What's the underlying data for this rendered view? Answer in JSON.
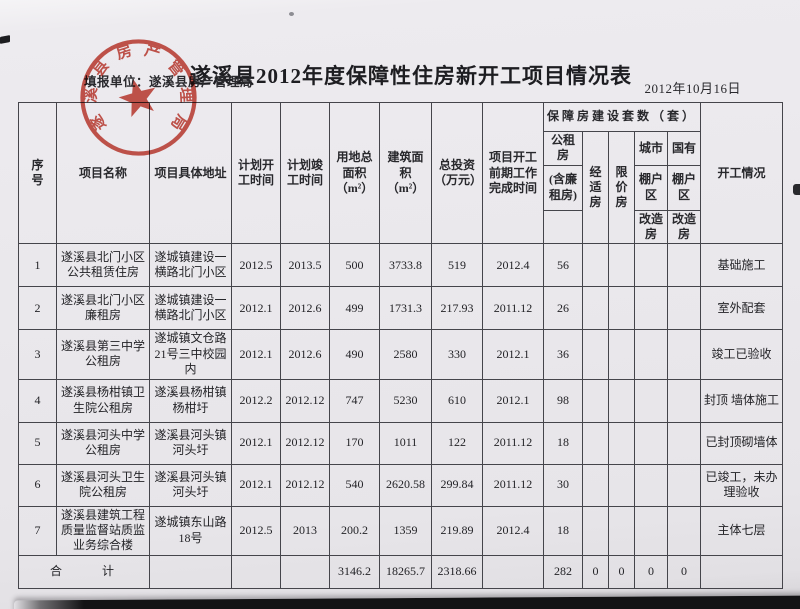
{
  "page": {
    "title": "遂溪县2012年度保障性住房新开工项目情况表",
    "report_unit": "填报单位：遂溪县房产管理局",
    "date": "2012年10月16日"
  },
  "stamp": {
    "text": "遂溪县房产管理局",
    "color": "#c2382c"
  },
  "table": {
    "column_keys": [
      "seq",
      "project-name",
      "project-address",
      "plan-start",
      "plan-finish",
      "land-area",
      "floor-area",
      "investment",
      "prework-time",
      "public-rental",
      "affordable",
      "price-capped",
      "urban-shanty",
      "state-shanty",
      "status"
    ],
    "headers": {
      "seq": "序\n号",
      "project_name": "项目名称",
      "project_address": "项目具体地址",
      "plan_start": "计划开\n工时间",
      "plan_finish": "计划竣\n工时间",
      "land_area": "用地总\n面积\n（m²）",
      "floor_area": "建筑面\n积\n（m²）",
      "investment": "总投资\n（万元）",
      "prework_time": "项目开工\n前期工作\n完成时间",
      "group": "保障房建设套数（套）",
      "public_rental_top": "公租\n房",
      "public_rental_sub": "(含廉\n租房)",
      "affordable": "经\n适\n房",
      "price_capped": "限\n价\n房",
      "urban_top": "城市",
      "urban_mid": "棚户\n区",
      "urban_bot": "改造\n房",
      "state_top": "国有",
      "state_mid": "棚户\n区",
      "state_bot": "改造\n房",
      "status": "开工情况"
    },
    "rows": [
      [
        "1",
        "遂溪县北门小区\n公共租赁住房",
        "遂城镇建设一\n横路北门小区",
        "2012.5",
        "2013.5",
        "500",
        "3733.8",
        "519",
        "2012.4",
        "56",
        "",
        "",
        "",
        "",
        "基础施工"
      ],
      [
        "2",
        "遂溪县北门小区\n廉租房",
        "遂城镇建设一\n横路北门小区",
        "2012.1",
        "2012.6",
        "499",
        "1731.3",
        "217.93",
        "2011.12",
        "26",
        "",
        "",
        "",
        "",
        "室外配套"
      ],
      [
        "3",
        "遂溪县第三中学\n公租房",
        "遂城镇文仓路\n21号三中校园\n内",
        "2012.1",
        "2012.6",
        "490",
        "2580",
        "330",
        "2012.1",
        "36",
        "",
        "",
        "",
        "",
        "竣工已验收"
      ],
      [
        "4",
        "遂溪县杨柑镇卫\n生院公租房",
        "遂溪县杨柑镇\n杨柑圩",
        "2012.2",
        "2012.12",
        "747",
        "5230",
        "610",
        "2012.1",
        "98",
        "",
        "",
        "",
        "",
        "封顶 墙体施工"
      ],
      [
        "5",
        "遂溪县河头中学\n公租房",
        "遂溪县河头镇\n河头圩",
        "2012.1",
        "2012.12",
        "170",
        "1011",
        "122",
        "2011.12",
        "18",
        "",
        "",
        "",
        "",
        "已封顶砌墙体"
      ],
      [
        "6",
        "遂溪县河头卫生\n院公租房",
        "遂溪县河头镇\n河头圩",
        "2012.1",
        "2012.12",
        "540",
        "2620.58",
        "299.84",
        "2011.12",
        "30",
        "",
        "",
        "",
        "",
        "已竣工，未办\n理验收"
      ],
      [
        "7",
        "遂溪县建筑工程\n质量监督站质监\n业务综合楼",
        "遂城镇东山路\n18号",
        "2012.5",
        "2013",
        "200.2",
        "1359",
        "219.89",
        "2012.4",
        "18",
        "",
        "",
        "",
        "",
        "主体七层"
      ]
    ],
    "total": {
      "label": "合　计",
      "cells": [
        "",
        "",
        "",
        "3146.2",
        "18265.7",
        "2318.66",
        "",
        "282",
        "0",
        "0",
        "0",
        "0",
        ""
      ]
    }
  }
}
